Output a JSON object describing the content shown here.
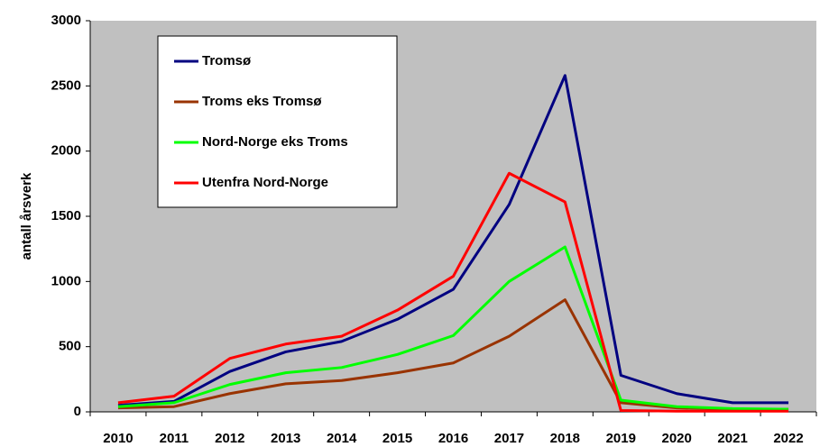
{
  "chart_data": {
    "type": "line",
    "y_label": "antall årsverk",
    "categories": [
      "2010",
      "2011",
      "2012",
      "2013",
      "2014",
      "2015",
      "2016",
      "2017",
      "2018",
      "2019",
      "2020",
      "2021",
      "2022"
    ],
    "series": [
      {
        "name": "Tromsø",
        "color": "#000080",
        "values": [
          50,
          80,
          310,
          460,
          540,
          710,
          940,
          1590,
          2580,
          280,
          140,
          70,
          70
        ]
      },
      {
        "name": "Troms eks Tromsø",
        "color": "#993300",
        "values": [
          30,
          40,
          140,
          215,
          240,
          300,
          375,
          580,
          860,
          70,
          30,
          20,
          20
        ]
      },
      {
        "name": "Nord-Norge eks Troms",
        "color": "#00ff00",
        "values": [
          40,
          70,
          210,
          300,
          340,
          440,
          585,
          1000,
          1265,
          90,
          40,
          25,
          20
        ]
      },
      {
        "name": "Utenfra  Nord-Norge",
        "color": "#ff0000",
        "values": [
          70,
          120,
          410,
          520,
          580,
          780,
          1040,
          1830,
          1610,
          10,
          5,
          5,
          5
        ]
      }
    ],
    "ylim": [
      0,
      3000
    ],
    "yticks": [
      0,
      500,
      1000,
      1500,
      2000,
      2500,
      3000
    ],
    "grid": false
  }
}
